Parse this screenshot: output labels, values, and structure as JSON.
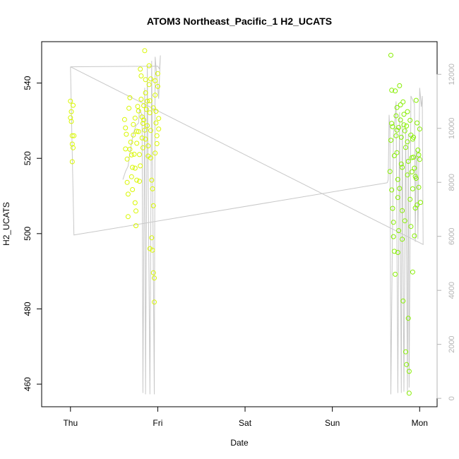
{
  "chart_data": {
    "type": "scatter",
    "title": "ATOM3 Northeast_Pacific_1 H2_UCATS",
    "xlabel": "Date",
    "ylabel": "H2_UCATS",
    "x_ticks": [
      "Thu",
      "Fri",
      "Sat",
      "Sun",
      "Mon"
    ],
    "xlim": [
      -0.33,
      4.2
    ],
    "ylim": [
      454,
      551
    ],
    "y_ticks": [
      460,
      480,
      500,
      520,
      540
    ],
    "y2_ticks": [
      0,
      2000,
      4000,
      6000,
      8000,
      10000,
      12000
    ],
    "y2lim": [
      -310,
      13210
    ],
    "grid": false,
    "colors": {
      "early_points": "#d9f700",
      "late_points": "#86ee00",
      "altitude_line": "#c8c8c8",
      "right_axis": "#b4b4b4"
    },
    "series": [
      {
        "kind": "points",
        "points": [
          [
            0.0,
            535.2
          ],
          [
            0.0,
            530.8
          ],
          [
            0.01,
            529.8
          ],
          [
            0.02,
            526.0
          ],
          [
            0.03,
            534.1
          ],
          [
            0.02,
            523.8
          ],
          [
            0.03,
            522.8
          ],
          [
            0.02,
            519.1
          ],
          [
            0.04,
            526.0
          ],
          [
            0.01,
            532.4
          ],
          [
            0.62,
            530.3
          ],
          [
            0.63,
            528.1
          ],
          [
            0.64,
            526.4
          ],
          [
            0.63,
            522.5
          ],
          [
            0.65,
            519.8
          ],
          [
            0.65,
            513.6
          ],
          [
            0.66,
            510.5
          ],
          [
            0.66,
            504.5
          ],
          [
            0.67,
            533.3
          ],
          [
            0.68,
            536.1
          ],
          [
            0.69,
            524.3
          ],
          [
            0.7,
            520.9
          ],
          [
            0.7,
            515.1
          ],
          [
            0.71,
            511.7
          ],
          [
            0.72,
            529.0
          ],
          [
            0.72,
            526.2
          ],
          [
            0.73,
            521.1
          ],
          [
            0.74,
            517.4
          ],
          [
            0.74,
            508.2
          ],
          [
            0.75,
            506.0
          ],
          [
            0.75,
            502.1
          ],
          [
            0.76,
            524.0
          ],
          [
            0.76,
            514.2
          ],
          [
            0.77,
            533.8
          ],
          [
            0.78,
            532.6
          ],
          [
            0.78,
            527.1
          ],
          [
            0.79,
            521.0
          ],
          [
            0.8,
            518.0
          ],
          [
            0.8,
            543.7
          ],
          [
            0.81,
            541.9
          ],
          [
            0.81,
            535.7
          ],
          [
            0.82,
            531.0
          ],
          [
            0.82,
            525.4
          ],
          [
            0.83,
            522.8
          ],
          [
            0.84,
            534.0
          ],
          [
            0.84,
            530.2
          ],
          [
            0.85,
            527.5
          ],
          [
            0.85,
            548.6
          ],
          [
            0.86,
            540.9
          ],
          [
            0.86,
            537.4
          ],
          [
            0.87,
            533.0
          ],
          [
            0.88,
            528.7
          ],
          [
            0.89,
            523.3
          ],
          [
            0.89,
            520.6
          ],
          [
            0.9,
            544.6
          ],
          [
            0.9,
            539.6
          ],
          [
            0.91,
            535.3
          ],
          [
            0.91,
            532.1
          ],
          [
            0.92,
            527.4
          ],
          [
            0.92,
            520.1
          ],
          [
            0.93,
            498.9
          ],
          [
            0.93,
            514.2
          ],
          [
            0.94,
            495.6
          ],
          [
            0.94,
            511.9
          ],
          [
            0.95,
            507.4
          ],
          [
            0.95,
            489.6
          ],
          [
            0.96,
            488.2
          ],
          [
            0.96,
            481.8
          ],
          [
            0.97,
            540.6
          ],
          [
            0.97,
            536.8
          ],
          [
            0.98,
            532.5
          ],
          [
            0.98,
            529.4
          ],
          [
            0.99,
            526.0
          ],
          [
            0.99,
            523.9
          ],
          [
            1.0,
            542.5
          ],
          [
            1.0,
            539.1
          ],
          [
            1.01,
            530.6
          ],
          [
            1.01,
            527.8
          ],
          [
            0.74,
            530.7
          ],
          [
            0.83,
            529.3
          ],
          [
            0.95,
            533.4
          ],
          [
            0.88,
            535.2
          ],
          [
            0.76,
            527.2
          ],
          [
            0.68,
            522.4
          ],
          [
            0.71,
            517.6
          ],
          [
            0.79,
            513.9
          ],
          [
            0.86,
            525.1
          ],
          [
            0.92,
            541.1
          ],
          [
            0.97,
            521.4
          ],
          [
            0.91,
            496.0
          ]
        ]
      },
      {
        "kind": "points",
        "points": [
          [
            3.67,
            547.4
          ],
          [
            3.68,
            538.1
          ],
          [
            3.69,
            528.4
          ],
          [
            3.67,
            524.8
          ],
          [
            3.66,
            516.5
          ],
          [
            3.68,
            511.6
          ],
          [
            3.69,
            506.7
          ],
          [
            3.7,
            503.0
          ],
          [
            3.7,
            499.2
          ],
          [
            3.71,
            495.3
          ],
          [
            3.72,
            489.2
          ],
          [
            3.72,
            537.9
          ],
          [
            3.73,
            531.3
          ],
          [
            3.74,
            527.5
          ],
          [
            3.74,
            521.5
          ],
          [
            3.75,
            514.4
          ],
          [
            3.75,
            509.6
          ],
          [
            3.76,
            500.8
          ],
          [
            3.77,
            539.3
          ],
          [
            3.78,
            534.2
          ],
          [
            3.78,
            530.2
          ],
          [
            3.79,
            525.6
          ],
          [
            3.8,
            517.6
          ],
          [
            3.8,
            506.1
          ],
          [
            3.81,
            482.1
          ],
          [
            3.81,
            535.0
          ],
          [
            3.82,
            531.7
          ],
          [
            3.83,
            527.3
          ],
          [
            3.84,
            522.9
          ],
          [
            3.84,
            468.6
          ],
          [
            3.85,
            465.2
          ],
          [
            3.85,
            528.6
          ],
          [
            3.86,
            524.4
          ],
          [
            3.87,
            519.2
          ],
          [
            3.87,
            477.5
          ],
          [
            3.88,
            463.4
          ],
          [
            3.88,
            457.6
          ],
          [
            3.89,
            530.1
          ],
          [
            3.9,
            526.2
          ],
          [
            3.91,
            520.2
          ],
          [
            3.91,
            516.4
          ],
          [
            3.92,
            511.9
          ],
          [
            3.92,
            489.8
          ],
          [
            3.93,
            525.6
          ],
          [
            3.94,
            517.4
          ],
          [
            3.95,
            515.2
          ],
          [
            3.95,
            506.8
          ],
          [
            3.96,
            535.4
          ],
          [
            3.97,
            529.4
          ],
          [
            3.98,
            522.2
          ],
          [
            3.99,
            520.9
          ],
          [
            3.99,
            512.3
          ],
          [
            4.0,
            527.8
          ],
          [
            4.0,
            519.7
          ],
          [
            4.01,
            508.3
          ],
          [
            3.73,
            526.0
          ],
          [
            3.76,
            528.2
          ],
          [
            3.79,
            518.5
          ],
          [
            3.82,
            528.9
          ],
          [
            3.86,
            515.6
          ],
          [
            3.89,
            509.1
          ],
          [
            3.93,
            520.3
          ],
          [
            3.96,
            514.7
          ],
          [
            3.71,
            520.7
          ],
          [
            3.74,
            533.5
          ],
          [
            3.77,
            512.0
          ],
          [
            3.83,
            503.4
          ],
          [
            3.9,
            501.9
          ],
          [
            3.94,
            499.4
          ],
          [
            3.97,
            507.6
          ],
          [
            3.75,
            495.0
          ],
          [
            3.8,
            498.5
          ],
          [
            3.68,
            529.3
          ],
          [
            3.86,
            532.4
          ],
          [
            3.92,
            525.1
          ]
        ]
      },
      {
        "kind": "line",
        "axis": "right",
        "points": [
          [
            0.0,
            12280
          ],
          [
            0.04,
            6050
          ],
          [
            3.62,
            7980
          ],
          [
            3.63,
            7990
          ],
          [
            3.64,
            8100
          ],
          [
            3.65,
            10500
          ],
          [
            3.66,
            9900
          ],
          [
            3.67,
            150
          ],
          [
            3.7,
            9800
          ],
          [
            3.72,
            10400
          ],
          [
            3.73,
            11000
          ],
          [
            3.75,
            200
          ],
          [
            3.77,
            10600
          ],
          [
            3.79,
            200
          ],
          [
            3.8,
            10300
          ],
          [
            3.82,
            250
          ],
          [
            3.84,
            10000
          ],
          [
            3.86,
            200
          ],
          [
            3.87,
            9800
          ],
          [
            3.88,
            400
          ],
          [
            3.9,
            11200
          ],
          [
            3.94,
            10900
          ],
          [
            3.95,
            5800
          ],
          [
            3.96,
            9200
          ],
          [
            3.97,
            8900
          ],
          [
            3.98,
            5900
          ],
          [
            4.0,
            11500
          ],
          [
            4.02,
            10800
          ],
          [
            4.03,
            11200
          ],
          [
            4.04,
            5700
          ],
          [
            0.0,
            12280
          ],
          [
            1.0,
            12300
          ],
          [
            1.02,
            12200
          ],
          [
            1.03,
            12700
          ],
          [
            1.01,
            11100
          ],
          [
            0.97,
            12650
          ],
          [
            0.96,
            150
          ],
          [
            0.93,
            12500
          ],
          [
            0.91,
            150
          ],
          [
            0.88,
            12300
          ],
          [
            0.86,
            150
          ],
          [
            0.85,
            11500
          ],
          [
            0.83,
            200
          ],
          [
            0.82,
            10500
          ],
          [
            0.79,
            10700
          ],
          [
            0.78,
            10200
          ],
          [
            0.75,
            10100
          ],
          [
            0.72,
            9800
          ],
          [
            0.69,
            9300
          ],
          [
            0.66,
            8600
          ],
          [
            0.63,
            8400
          ],
          [
            0.6,
            8100
          ]
        ]
      }
    ]
  }
}
